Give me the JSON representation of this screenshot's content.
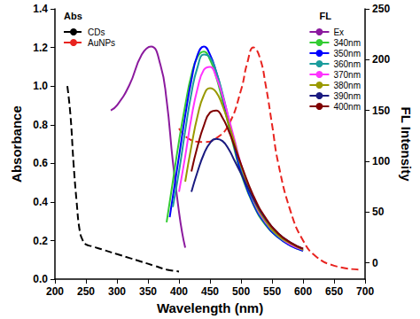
{
  "chart_data": {
    "type": "line",
    "x_label": "Wavelength (nm)",
    "y_label": "Absorbance",
    "y2_label": "FL Intensity",
    "annotations": [
      "Abs",
      "FL"
    ],
    "xlim": [
      200,
      700
    ],
    "xticks": [
      200,
      250,
      300,
      350,
      400,
      450,
      500,
      550,
      600,
      650,
      700
    ],
    "ylim": [
      0,
      1.4
    ],
    "yticks": [
      {
        "value": 0,
        "label": "0.0"
      },
      0.2,
      0.4,
      0.6,
      0.8,
      {
        "value": 1,
        "label": "1.0"
      },
      1.2,
      1.4
    ],
    "y2lim": [
      -16,
      250
    ],
    "y2ticks": [
      0,
      50,
      100,
      150,
      200,
      250
    ],
    "grid": false,
    "legend": "upper right",
    "series": [
      {
        "name": "CDs",
        "color": "#000000",
        "line_style": "dashed",
        "x": [
          220,
          225,
          230,
          235,
          240,
          245,
          250,
          260,
          270,
          280,
          300,
          320,
          340,
          360,
          380,
          400
        ],
        "values": [
          1.0,
          0.85,
          0.6,
          0.4,
          0.25,
          0.2,
          0.18,
          0.17,
          0.16,
          0.15,
          0.13,
          0.11,
          0.09,
          0.07,
          0.05,
          0.04
        ]
      },
      {
        "name": "AuNPs",
        "color": "#e8231f",
        "line_style": "dashed",
        "x": [
          400,
          420,
          440,
          460,
          480,
          500,
          510,
          520,
          530,
          540,
          550,
          560,
          580,
          600,
          620,
          650,
          690
        ],
        "values": [
          0.78,
          0.72,
          0.71,
          0.73,
          0.8,
          0.98,
          1.12,
          1.2,
          1.15,
          1.0,
          0.8,
          0.6,
          0.35,
          0.2,
          0.12,
          0.07,
          0.05
        ]
      },
      {
        "name": "Ex",
        "color": "#8b1a9e",
        "line_style": "solid",
        "axis": "y2",
        "x": [
          290,
          300,
          320,
          340,
          355,
          370,
          380,
          390,
          400,
          405,
          410
        ],
        "values": [
          150,
          155,
          175,
          205,
          213,
          195,
          160,
          100,
          50,
          30,
          15
        ]
      },
      {
        "name": "340nm",
        "color": "#33cc33",
        "line_style": "solid",
        "axis": "y2",
        "x": [
          380,
          390,
          400,
          410,
          420,
          430,
          440,
          450,
          460,
          470,
          480,
          490,
          500,
          520,
          540,
          560,
          580,
          600
        ],
        "values": [
          40,
          80,
          120,
          155,
          185,
          203,
          208,
          200,
          183,
          160,
          135,
          110,
          88,
          57,
          37,
          25,
          17,
          12
        ]
      },
      {
        "name": "350nm",
        "color": "#0000ff",
        "line_style": "solid",
        "axis": "y2",
        "x": [
          385,
          390,
          400,
          410,
          420,
          430,
          440,
          450,
          460,
          470,
          480,
          490,
          500,
          520,
          540,
          560,
          580,
          600
        ],
        "values": [
          45,
          65,
          105,
          145,
          180,
          205,
          213,
          205,
          188,
          165,
          138,
          113,
          90,
          58,
          38,
          25,
          17,
          12
        ]
      },
      {
        "name": "360nm",
        "color": "#1a9c9c",
        "line_style": "solid",
        "axis": "y2",
        "x": [
          390,
          400,
          410,
          420,
          430,
          440,
          450,
          460,
          470,
          480,
          490,
          500,
          520,
          540,
          560,
          580,
          600
        ],
        "values": [
          55,
          90,
          130,
          167,
          193,
          205,
          202,
          188,
          167,
          142,
          117,
          94,
          60,
          39,
          26,
          18,
          13
        ]
      },
      {
        "name": "370nm",
        "color": "#ff33ff",
        "line_style": "solid",
        "axis": "y2",
        "x": [
          400,
          410,
          420,
          430,
          440,
          450,
          460,
          470,
          480,
          490,
          500,
          520,
          540,
          560,
          580,
          600
        ],
        "values": [
          70,
          105,
          143,
          172,
          190,
          193,
          183,
          165,
          143,
          120,
          97,
          62,
          40,
          27,
          18,
          13
        ]
      },
      {
        "name": "380nm",
        "color": "#999900",
        "line_style": "solid",
        "axis": "y2",
        "x": [
          410,
          420,
          430,
          440,
          450,
          460,
          470,
          480,
          490,
          500,
          520,
          540,
          560,
          580,
          600
        ],
        "values": [
          80,
          115,
          145,
          165,
          172,
          168,
          155,
          137,
          117,
          96,
          63,
          41,
          27,
          19,
          13
        ]
      },
      {
        "name": "390nm",
        "color": "#1a1a80",
        "line_style": "solid",
        "axis": "y2",
        "x": [
          420,
          430,
          440,
          450,
          460,
          470,
          480,
          490,
          500,
          520,
          540,
          560,
          580,
          600
        ],
        "values": [
          70,
          90,
          107,
          118,
          122,
          120,
          112,
          100,
          88,
          63,
          43,
          29,
          20,
          14
        ]
      },
      {
        "name": "400nm",
        "color": "#800000",
        "line_style": "solid",
        "axis": "y2",
        "x": [
          420,
          430,
          440,
          450,
          460,
          470,
          480,
          490,
          500,
          520,
          540,
          560,
          580,
          600
        ],
        "values": [
          90,
          115,
          135,
          148,
          150,
          143,
          130,
          114,
          97,
          66,
          44,
          29,
          20,
          14
        ]
      }
    ]
  }
}
